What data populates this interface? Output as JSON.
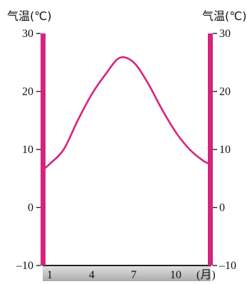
{
  "chart_data": {
    "type": "line",
    "title": "",
    "left_axis_label": "气温(℃)",
    "right_axis_label": "气温(℃)",
    "y_ticks": [
      "30",
      "20",
      "10",
      "0",
      "–10"
    ],
    "y_tick_values": [
      30,
      20,
      10,
      0,
      -10
    ],
    "ylim": [
      -10,
      30
    ],
    "x_tick_labels": [
      "1",
      "4",
      "7",
      "10"
    ],
    "x_tick_values": [
      1,
      4,
      7,
      10
    ],
    "x_unit": "(月)",
    "xlim": [
      0.5,
      12.5
    ],
    "grid": false,
    "series": [
      {
        "x": [
          0.5,
          1,
          2,
          3,
          4,
          5,
          6,
          7,
          8,
          9,
          10,
          11,
          12,
          12.5
        ],
        "values": [
          6.5,
          7.5,
          10,
          15,
          19.5,
          23,
          25.8,
          25,
          21.5,
          17,
          13,
          10,
          8,
          7.5
        ]
      }
    ],
    "colors": {
      "axis_bar": "#d6247e",
      "curve": "#d6247e",
      "x_band": "#c4c6c8",
      "baseline": "#222222"
    }
  }
}
